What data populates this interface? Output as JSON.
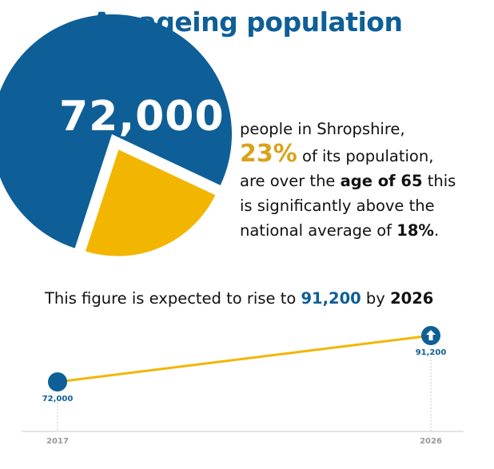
{
  "title": "An ageing population",
  "headline": {
    "number": "72,000",
    "line1": "people in Shropshire,",
    "pct": "23%",
    "line2_rest": " of its population,",
    "line3_pre": "are over the ",
    "line3_bold": "age of 65",
    "line3_post": " this",
    "line4": "is significantly above the",
    "line5_pre": "national average of ",
    "line5_bold": "18%",
    "line5_post": "."
  },
  "sentence": {
    "pre": "This figure is expected to rise to ",
    "value": "91,200",
    "mid": " by ",
    "year": "2026"
  },
  "colors": {
    "blue": "#0e5f97",
    "gold": "#f2b600",
    "goldText": "#d9a21b"
  },
  "icons": {
    "arrow": "arrow-up-icon"
  },
  "chart_data": [
    {
      "type": "pie",
      "values": [
        77,
        23
      ],
      "labels": [
        "",
        "23%"
      ]
    },
    {
      "type": "line",
      "x": [
        "2017",
        "2026"
      ],
      "series": [
        {
          "values": [
            72000,
            91200
          ]
        }
      ],
      "point_labels": [
        "72,000",
        "91,200"
      ]
    }
  ]
}
